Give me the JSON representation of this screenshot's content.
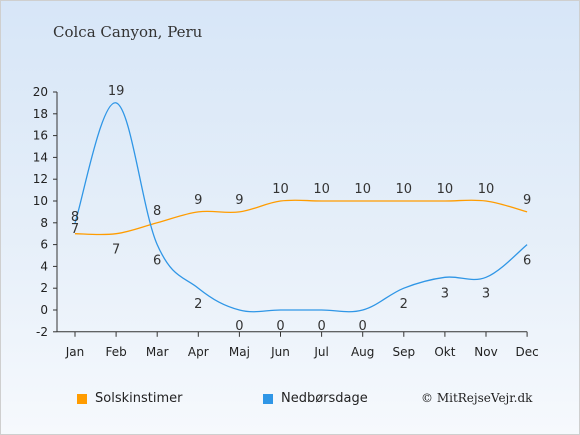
{
  "page": {
    "title": "Colca Canyon, Peru",
    "copyright": "© MitRejseVejr.dk"
  },
  "chart_data": {
    "type": "line",
    "categories": [
      "Jan",
      "Feb",
      "Mar",
      "Apr",
      "Maj",
      "Jun",
      "Jul",
      "Aug",
      "Sep",
      "Okt",
      "Nov",
      "Dec"
    ],
    "series": [
      {
        "name": "Solskinstimer",
        "color": "#ff9c00",
        "values": [
          7,
          7,
          8,
          9,
          9,
          10,
          10,
          10,
          10,
          10,
          10,
          9
        ]
      },
      {
        "name": "Nedbørsdage",
        "color": "#2f96e6",
        "values": [
          8,
          19,
          6,
          2,
          0,
          0,
          0,
          0,
          2,
          3,
          3,
          6
        ]
      }
    ],
    "data_labels": [
      {
        "series": "Solskinstimer",
        "values": [
          7,
          7,
          8,
          9,
          9,
          10,
          10,
          10,
          10,
          10,
          10,
          9
        ]
      },
      {
        "series": "Nedbørsdage",
        "values": [
          8,
          19,
          6,
          2,
          0,
          0,
          0,
          0,
          2,
          3,
          3,
          6
        ]
      }
    ],
    "ylim": [
      -2,
      20
    ],
    "yticks": [
      -2,
      0,
      2,
      4,
      6,
      8,
      10,
      12,
      14,
      16,
      18,
      20
    ],
    "grid": false,
    "legend": "bottom-left"
  }
}
